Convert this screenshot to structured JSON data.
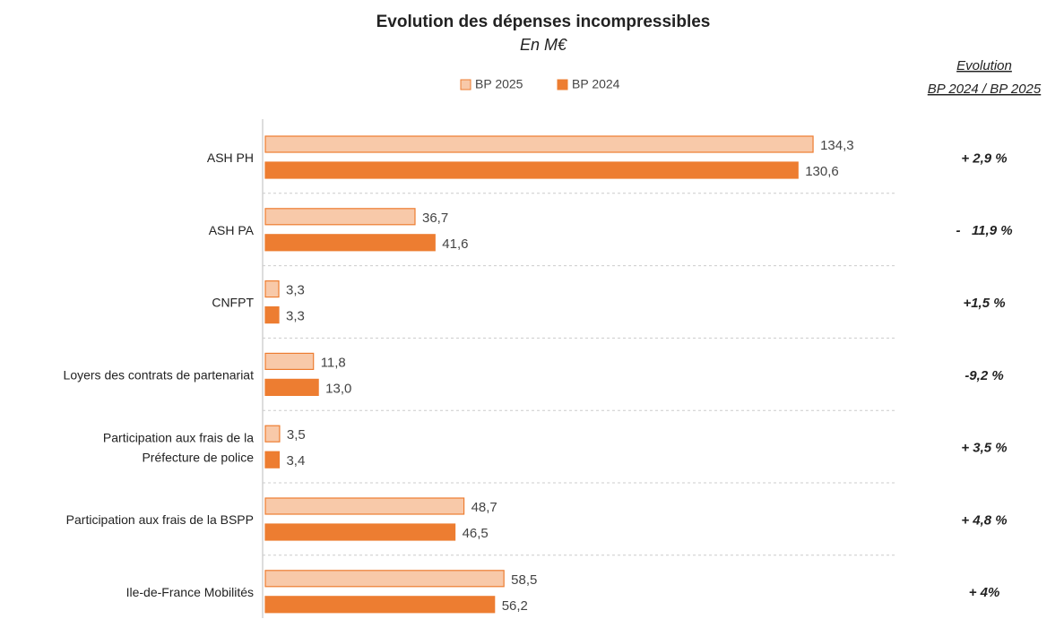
{
  "chart_data": {
    "type": "barh",
    "title": "Evolution des dépenses incompressibles",
    "subtitle": "En M€",
    "categories": [
      "ASH PH",
      "ASH PA",
      "CNFPT",
      "Loyers des contrats de partenariat",
      "Participation aux frais de la\nPréfecture de police",
      "Participation aux frais de la BSPP",
      "Ile-de-France Mobilités"
    ],
    "series": [
      {
        "name": "BP 2025",
        "color": "#f8c9a9",
        "values": [
          134.3,
          36.7,
          3.3,
          11.8,
          3.5,
          48.7,
          58.5
        ],
        "value_labels": [
          "134,3",
          "36,7",
          "3,3",
          "11,8",
          "3,5",
          "48,7",
          "58,5"
        ]
      },
      {
        "name": "BP 2024",
        "color": "#ed7d31",
        "values": [
          130.6,
          41.6,
          3.3,
          13.0,
          3.4,
          46.5,
          56.2
        ],
        "value_labels": [
          "130,6",
          "41,6",
          "3,3",
          "13,0",
          "3,4",
          "46,5",
          "56,2"
        ]
      }
    ],
    "evolution_header": [
      "Evolution",
      "BP 2024 / BP 2025"
    ],
    "evolution": [
      "+ 2,9 %",
      "-   11,9 %",
      "+1,5 %",
      "-9,2 %",
      "+ 3,5 %",
      "+ 4,8 %",
      "+ 4%"
    ],
    "legend": "top"
  }
}
